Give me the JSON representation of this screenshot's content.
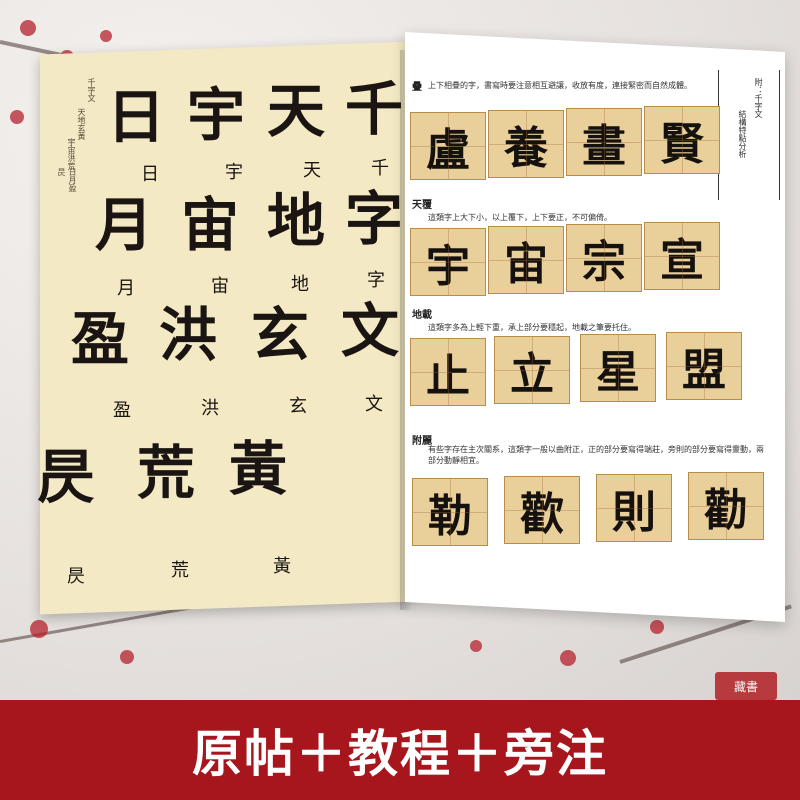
{
  "left_page": {
    "header": [
      "千字文",
      "天地玄黃",
      "宇宙洪荒",
      "日月盈昃"
    ],
    "glyphs": [
      {
        "seal": "日",
        "label": "日"
      },
      {
        "seal": "宇",
        "label": "宇"
      },
      {
        "seal": "天",
        "label": "天"
      },
      {
        "seal": "千",
        "label": "千"
      },
      {
        "seal": "月",
        "label": "月"
      },
      {
        "seal": "宙",
        "label": "宙"
      },
      {
        "seal": "地",
        "label": "地"
      },
      {
        "seal": "字",
        "label": "字"
      },
      {
        "seal": "盈",
        "label": "盈"
      },
      {
        "seal": "洪",
        "label": "洪"
      },
      {
        "seal": "玄",
        "label": "玄"
      },
      {
        "seal": "文",
        "label": "文"
      },
      {
        "seal": "昃",
        "label": "昃"
      },
      {
        "seal": "荒",
        "label": "荒"
      },
      {
        "seal": "黃",
        "label": "黃"
      }
    ]
  },
  "right_page": {
    "side_tab": [
      "附：千字文",
      "結構特點分析"
    ],
    "sections": [
      {
        "title": "疊",
        "note": "上下相疊的字，書寫時要注意相互避讓，收放有度，連接緊密而自然成體。",
        "cells": [
          "盧",
          "養",
          "畫",
          "賢"
        ]
      },
      {
        "title": "天覆",
        "note": "這類字上大下小，以上覆下，上下要正，不可偏倚。",
        "cells": [
          "宇",
          "宙",
          "宗",
          "宣"
        ]
      },
      {
        "title": "地載",
        "note": "這類字多為上輕下重，承上部分要穩起，地載之筆要托住。",
        "cells": [
          "止",
          "立",
          "星",
          "盟"
        ]
      },
      {
        "title": "附麗",
        "note": "有些字存在主次關系，這類字一般以曲附正，正的部分要寫得端莊，旁則的部分要寫得靈動，兩部分動靜相宜。",
        "cells": [
          "勒",
          "歡",
          "則",
          "勸"
        ]
      }
    ]
  },
  "banner": {
    "text": "原帖＋教程＋旁注"
  },
  "seal": {
    "text": "藏書"
  },
  "colors": {
    "banner": "#a8161d",
    "cell": "#e9cf9a",
    "page_left": "#f3e9c4"
  }
}
